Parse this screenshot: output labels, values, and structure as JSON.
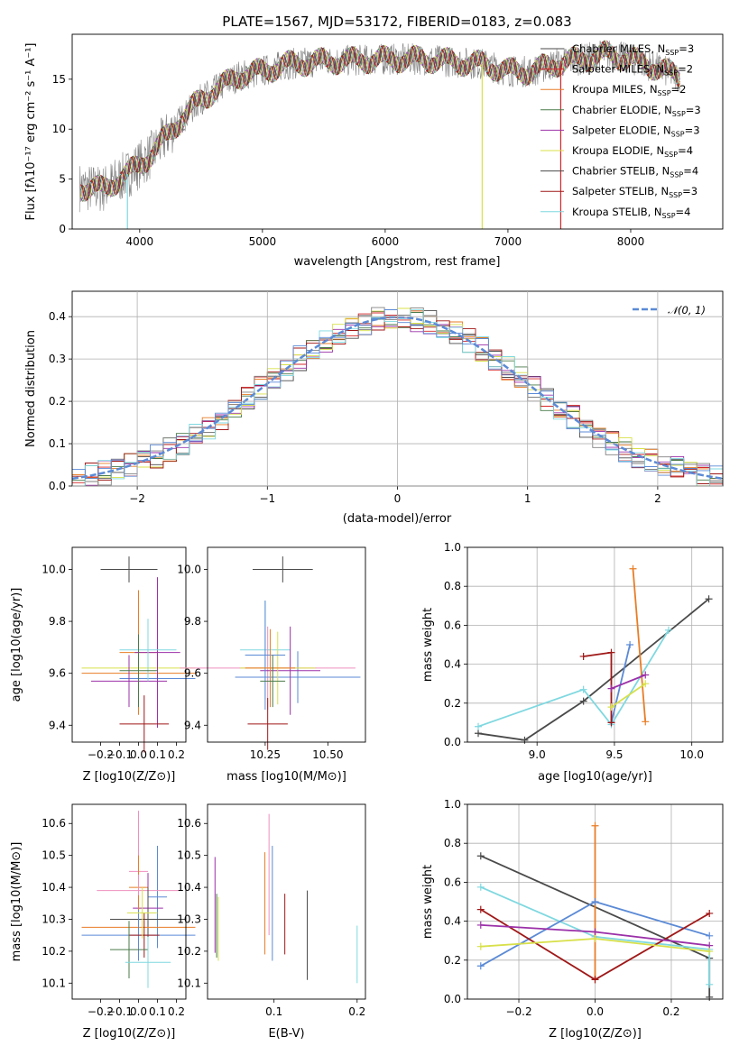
{
  "chart_data": [
    {
      "type": "line",
      "title": "PLATE=1567, MJD=53172, FIBERID=0183, z=0.083",
      "xlabel": "wavelength [Angstrom, rest frame]",
      "ylabel": "Flux [fλ10⁻¹⁷ erg cm⁻² s⁻¹ A⁻¹]",
      "xlim": [
        3450,
        8750
      ],
      "ylim": [
        0,
        19.5
      ],
      "xticks": [
        4000,
        5000,
        6000,
        7000,
        8000
      ],
      "yticks": [
        0,
        5,
        10,
        15
      ],
      "grid": false,
      "legend_position": "right",
      "data_series_name": "",
      "continuum": {
        "x": [
          3500,
          3700,
          3900,
          4000,
          4100,
          4300,
          4500,
          4800,
          5000,
          5200,
          5500,
          5800,
          6000,
          6300,
          6500,
          6800,
          7000,
          7200,
          7400,
          7600,
          7800,
          8000,
          8200,
          8400
        ],
        "y": [
          4.2,
          4.0,
          5.5,
          6.5,
          7.5,
          10.5,
          13.0,
          15.3,
          15.8,
          16.5,
          16.8,
          16.9,
          17.0,
          17.0,
          16.8,
          16.5,
          15.8,
          15.8,
          16.6,
          17.0,
          17.5,
          17.0,
          16.2,
          15.2
        ]
      },
      "models": [
        {
          "name": "Chabrier MILES, N",
          "sub": "SSP",
          "n": "=3",
          "color": "#4a4a4a"
        },
        {
          "name": "Salpeter MILES, N",
          "sub": "SSP",
          "n": "=2",
          "color": "#d62728"
        },
        {
          "name": "Kroupa MILES, N",
          "sub": "SSP",
          "n": "=2",
          "color": "#e87d26"
        },
        {
          "name": "Chabrier ELODIE, N",
          "sub": "SSP",
          "n": "=3",
          "color": "#4a7a4a"
        },
        {
          "name": "Salpeter ELODIE, N",
          "sub": "SSP",
          "n": "=3",
          "color": "#9b30a8"
        },
        {
          "name": "Kroupa ELODIE, N",
          "sub": "SSP",
          "n": "=4",
          "color": "#d8e04a"
        },
        {
          "name": "Chabrier STELIB, N",
          "sub": "SSP",
          "n": "=4",
          "color": "#4a4a4a"
        },
        {
          "name": "Salpeter STELIB, N",
          "sub": "SSP",
          "n": "=3",
          "color": "#a01818"
        },
        {
          "name": "Kroupa STELIB, N",
          "sub": "SSP",
          "n": "=4",
          "color": "#7fd8e0"
        }
      ]
    },
    {
      "type": "step",
      "xlabel": "(data-model)/error",
      "ylabel": "Normed distribution",
      "xlim": [
        -2.5,
        2.5
      ],
      "ylim": [
        0,
        0.46
      ],
      "xticks": [
        -2,
        -1,
        0,
        1,
        2
      ],
      "yticks": [
        0.0,
        0.1,
        0.2,
        0.3,
        0.4
      ],
      "grid": true,
      "legend_position": "top-right",
      "gaussian_label": "𝒩(0, 1)",
      "gaussian_color": "#5b8ad6",
      "bin_width": 0.1
    },
    {
      "type": "errorbar",
      "xlabel": "Z [log10(Z/Z⊙)]",
      "ylabel": "age  [log10(age/yr)]",
      "xlim": [
        -0.35,
        0.25
      ],
      "ylim": [
        9.335,
        10.085
      ],
      "xticks": [
        -0.2,
        -0.1,
        0.0,
        0.1,
        0.2
      ],
      "yticks": [
        9.4,
        9.6,
        9.8,
        10.0
      ],
      "points": [
        {
          "x": 0.0,
          "xerr": 0.3,
          "y": 9.62,
          "yerr": 0.12,
          "color": "#d8e04a"
        },
        {
          "x": 0.1,
          "xerr": 0.2,
          "y": 9.58,
          "yerr": 0.16,
          "color": "#5b8ad6"
        },
        {
          "x": 0.0,
          "xerr": 0.3,
          "y": 9.6,
          "yerr": 0.13,
          "color": "#e87d26"
        },
        {
          "x": 0.0,
          "xerr": 0.1,
          "y": 9.68,
          "yerr": 0.24,
          "color": "#e87d26"
        },
        {
          "x": 0.1,
          "xerr": 0.12,
          "y": 9.68,
          "yerr": 0.29,
          "color": "#9b30a8"
        },
        {
          "x": -0.05,
          "xerr": 0.2,
          "y": 9.57,
          "yerr": 0.1,
          "color": "#9b30a8"
        },
        {
          "x": 0.05,
          "xerr": 0.15,
          "y": 9.69,
          "yerr": 0.12,
          "color": "#7fd8e0"
        },
        {
          "x": -0.05,
          "xerr": 0.15,
          "y": 10.0,
          "yerr": 0.05,
          "color": "#4a4a4a"
        },
        {
          "x": 0.03,
          "xerr": 0.13,
          "y": 9.405,
          "yerr": 0.11,
          "color": "#a01818"
        },
        {
          "x": 0.0,
          "xerr": 0.1,
          "y": 9.61,
          "yerr": 0.14,
          "color": "#4a7a4a"
        }
      ]
    },
    {
      "type": "errorbar",
      "xlabel": "mass [log10(M/M⊙)]",
      "xlim": [
        10.02,
        10.65
      ],
      "ylim": [
        9.335,
        10.085
      ],
      "xticks": [
        10.25,
        10.5
      ],
      "yticks": [
        9.4,
        9.6,
        9.8,
        10.0
      ],
      "points": [
        {
          "x": 10.32,
          "xerr": 0.12,
          "y": 10.0,
          "yerr": 0.05,
          "color": "#4a4a4a"
        },
        {
          "x": 10.25,
          "xerr": 0.1,
          "y": 9.69,
          "yerr": 0.19,
          "color": "#7fd8e0"
        },
        {
          "x": 10.26,
          "xerr": 0.35,
          "y": 9.62,
          "yerr": 0.16,
          "color": "#ef8fbf"
        },
        {
          "x": 10.38,
          "xerr": 0.25,
          "y": 9.585,
          "yerr": 0.1,
          "color": "#5b8ad6"
        },
        {
          "x": 10.35,
          "xerr": 0.12,
          "y": 9.61,
          "yerr": 0.17,
          "color": "#9b30a8"
        },
        {
          "x": 10.3,
          "xerr": 0.15,
          "y": 9.62,
          "yerr": 0.14,
          "color": "#d8e04a"
        },
        {
          "x": 10.25,
          "xerr": 0.08,
          "y": 9.67,
          "yerr": 0.21,
          "color": "#5b8ad6"
        },
        {
          "x": 10.27,
          "xerr": 0.1,
          "y": 9.62,
          "yerr": 0.15,
          "color": "#e87d26"
        },
        {
          "x": 10.28,
          "xerr": 0.05,
          "y": 9.57,
          "yerr": 0.1,
          "color": "#4a7a4a"
        },
        {
          "x": 10.26,
          "xerr": 0.08,
          "y": 9.405,
          "yerr": 0.1,
          "color": "#a01818"
        }
      ]
    },
    {
      "type": "line",
      "xlabel": "age  [log10(age/yr)]",
      "ylabel": "mass weight",
      "xlim": [
        8.55,
        10.2
      ],
      "ylim": [
        0,
        1.0
      ],
      "xticks": [
        9.0,
        9.5,
        10.0
      ],
      "yticks": [
        0.0,
        0.2,
        0.4,
        0.6,
        0.8,
        1.0
      ],
      "grid": true,
      "series": [
        {
          "color": "#4a4a4a",
          "x": [
            8.62,
            8.92,
            9.3,
            10.11
          ],
          "y": [
            0.045,
            0.01,
            0.21,
            0.735
          ]
        },
        {
          "color": "#7fd8e0",
          "x": [
            8.62,
            9.3,
            9.48,
            9.85
          ],
          "y": [
            0.08,
            0.27,
            0.09,
            0.575
          ]
        },
        {
          "color": "#e87d26",
          "x": [
            9.62,
            9.7
          ],
          "y": [
            0.89,
            0.105
          ]
        },
        {
          "color": "#5b8ad6",
          "x": [
            9.48,
            9.6
          ],
          "y": [
            0.1,
            0.5
          ]
        },
        {
          "color": "#a01818",
          "x": [
            9.3,
            9.48,
            9.48
          ],
          "y": [
            0.44,
            0.46,
            0.1
          ]
        },
        {
          "color": "#9b30a8",
          "x": [
            9.48,
            9.7
          ],
          "y": [
            0.275,
            0.345
          ]
        },
        {
          "color": "#d8e04a",
          "x": [
            9.48,
            9.7
          ],
          "y": [
            0.18,
            0.3
          ]
        }
      ]
    },
    {
      "type": "errorbar",
      "xlabel": "Z [log10(Z/Z⊙)]",
      "ylabel": "mass [log10(M/M⊙)]",
      "xlim": [
        -0.35,
        0.25
      ],
      "ylim": [
        10.05,
        10.66
      ],
      "xticks": [
        -0.2,
        -0.1,
        0.0,
        0.1,
        0.2
      ],
      "yticks": [
        10.1,
        10.2,
        10.3,
        10.4,
        10.5,
        10.6
      ],
      "points": [
        {
          "x": 0.0,
          "xerr": 0.05,
          "y": 10.45,
          "yerr": 0.19,
          "color": "#ef8fbf"
        },
        {
          "x": 0.0,
          "xerr": 0.05,
          "y": 10.4,
          "yerr": 0.1,
          "color": "#e87d26"
        },
        {
          "x": 0.1,
          "xerr": 0.05,
          "y": 10.37,
          "yerr": 0.16,
          "color": "#5b8ad6"
        },
        {
          "x": 0.0,
          "xerr": 0.22,
          "y": 10.39,
          "yerr": 0.05,
          "color": "#ef8fbf"
        },
        {
          "x": 0.05,
          "xerr": 0.08,
          "y": 10.335,
          "yerr": 0.11,
          "color": "#9b30a8"
        },
        {
          "x": 0.05,
          "xerr": 0.2,
          "y": 10.3,
          "yerr": 0.1,
          "color": "#4a4a4a"
        },
        {
          "x": 0.0,
          "xerr": 0.3,
          "y": 10.275,
          "yerr": 0.1,
          "color": "#e87d26"
        },
        {
          "x": 0.0,
          "xerr": 0.3,
          "y": 10.25,
          "yerr": 0.08,
          "color": "#5b8ad6"
        },
        {
          "x": 0.03,
          "xerr": 0.08,
          "y": 10.25,
          "yerr": 0.07,
          "color": "#a01818"
        },
        {
          "x": -0.05,
          "xerr": 0.1,
          "y": 10.205,
          "yerr": 0.09,
          "color": "#4a7a4a"
        },
        {
          "x": 0.05,
          "xerr": 0.12,
          "y": 10.165,
          "yerr": 0.08,
          "color": "#7fd8e0"
        },
        {
          "x": 0.02,
          "xerr": 0.08,
          "y": 10.32,
          "yerr": 0.08,
          "color": "#d8e04a"
        }
      ]
    },
    {
      "type": "errorbar",
      "xlabel": "E(B-V)",
      "xlim": [
        0.02,
        0.21
      ],
      "ylim": [
        10.05,
        10.66
      ],
      "xticks": [
        0.1,
        0.2
      ],
      "yticks": [
        10.1,
        10.2,
        10.3,
        10.4,
        10.5,
        10.6
      ],
      "points": [
        {
          "x": 0.029,
          "y": 10.345,
          "yerr": 0.15,
          "color": "#9b30a8"
        },
        {
          "x": 0.031,
          "y": 10.28,
          "yerr": 0.1,
          "color": "#4a7a4a"
        },
        {
          "x": 0.033,
          "y": 10.27,
          "yerr": 0.1,
          "color": "#d8e04a"
        },
        {
          "x": 0.089,
          "y": 10.35,
          "yerr": 0.16,
          "color": "#e87d26"
        },
        {
          "x": 0.094,
          "y": 10.44,
          "yerr": 0.19,
          "color": "#ef8fbf"
        },
        {
          "x": 0.098,
          "y": 10.35,
          "yerr": 0.18,
          "color": "#5b8ad6"
        },
        {
          "x": 0.113,
          "y": 10.285,
          "yerr": 0.095,
          "color": "#a01818"
        },
        {
          "x": 0.14,
          "y": 10.25,
          "yerr": 0.14,
          "color": "#4a4a4a"
        },
        {
          "x": 0.2,
          "y": 10.19,
          "yerr": 0.09,
          "color": "#7fd8e0"
        }
      ]
    },
    {
      "type": "line",
      "xlabel": "Z [log10(Z/Z⊙)]",
      "ylabel": "mass weight",
      "xlim": [
        -0.335,
        0.335
      ],
      "ylim": [
        0,
        1.0
      ],
      "xticks": [
        -0.2,
        0.0,
        0.2
      ],
      "yticks": [
        0.0,
        0.2,
        0.4,
        0.6,
        0.8,
        1.0
      ],
      "grid": true,
      "series": [
        {
          "color": "#4a4a4a",
          "x": [
            -0.3,
            0.3,
            0.3
          ],
          "y": [
            0.735,
            0.21,
            0.01
          ]
        },
        {
          "color": "#7fd8e0",
          "x": [
            -0.3,
            0.0,
            0.3,
            0.3
          ],
          "y": [
            0.575,
            0.32,
            0.255,
            0.075
          ]
        },
        {
          "color": "#e87d26",
          "x": [
            0.0,
            0.0
          ],
          "y": [
            0.89,
            0.1
          ]
        },
        {
          "color": "#5b8ad6",
          "x": [
            -0.3,
            0.0,
            0.3
          ],
          "y": [
            0.17,
            0.5,
            0.325
          ]
        },
        {
          "color": "#a01818",
          "x": [
            -0.3,
            0.0,
            0.3
          ],
          "y": [
            0.46,
            0.1,
            0.44
          ]
        },
        {
          "color": "#9b30a8",
          "x": [
            -0.3,
            0.0,
            0.3
          ],
          "y": [
            0.38,
            0.345,
            0.275
          ]
        },
        {
          "color": "#d8e04a",
          "x": [
            -0.3,
            0.0,
            0.3
          ],
          "y": [
            0.27,
            0.31,
            0.245
          ]
        }
      ]
    }
  ]
}
